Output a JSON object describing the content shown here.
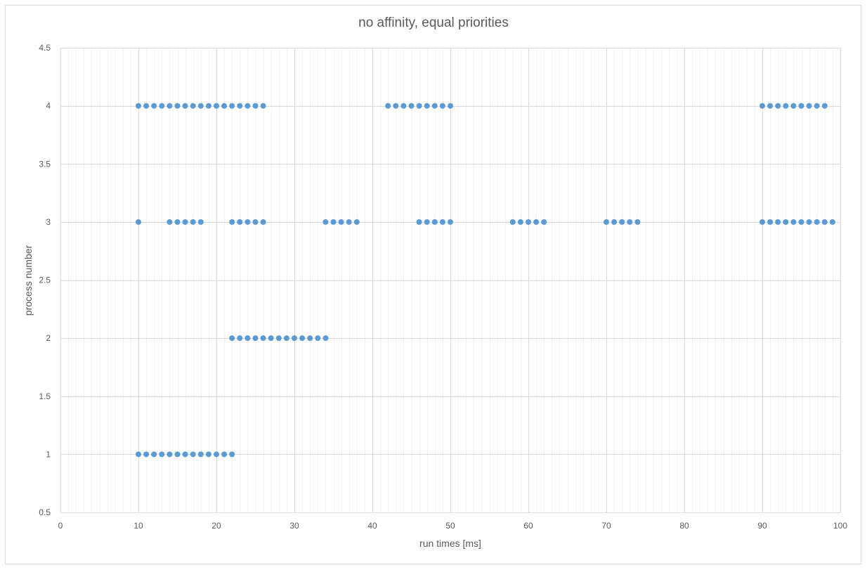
{
  "chart_data": {
    "type": "scatter",
    "title": "no affinity, equal priorities",
    "xlabel": "run times [ms]",
    "ylabel": "process number",
    "xlim": [
      0,
      100
    ],
    "ylim": [
      0.5,
      4.5
    ],
    "x_major_step": 10,
    "x_minor_step": 1,
    "y_step": 0.5,
    "x_tick_labels": [
      "0",
      "10",
      "20",
      "30",
      "40",
      "50",
      "60",
      "70",
      "80",
      "90",
      "100"
    ],
    "y_tick_labels": [
      "0.5",
      "1",
      "1.5",
      "2",
      "2.5",
      "3",
      "3.5",
      "4",
      "4.5"
    ],
    "grid": true,
    "legend": "none",
    "marker_color": "#5b9bd5",
    "grid_color": "#d9d9d9",
    "series": [
      {
        "points": [
          [
            10,
            1
          ],
          [
            11,
            1
          ],
          [
            12,
            1
          ],
          [
            13,
            1
          ],
          [
            14,
            1
          ],
          [
            15,
            1
          ],
          [
            16,
            1
          ],
          [
            17,
            1
          ],
          [
            18,
            1
          ],
          [
            19,
            1
          ],
          [
            20,
            1
          ],
          [
            21,
            1
          ],
          [
            22,
            1
          ],
          [
            22,
            2
          ],
          [
            23,
            2
          ],
          [
            24,
            2
          ],
          [
            25,
            2
          ],
          [
            26,
            2
          ],
          [
            27,
            2
          ],
          [
            28,
            2
          ],
          [
            29,
            2
          ],
          [
            30,
            2
          ],
          [
            31,
            2
          ],
          [
            32,
            2
          ],
          [
            33,
            2
          ],
          [
            34,
            2
          ],
          [
            10,
            3
          ],
          [
            14,
            3
          ],
          [
            15,
            3
          ],
          [
            16,
            3
          ],
          [
            17,
            3
          ],
          [
            18,
            3
          ],
          [
            22,
            3
          ],
          [
            23,
            3
          ],
          [
            24,
            3
          ],
          [
            25,
            3
          ],
          [
            26,
            3
          ],
          [
            34,
            3
          ],
          [
            35,
            3
          ],
          [
            36,
            3
          ],
          [
            37,
            3
          ],
          [
            38,
            3
          ],
          [
            46,
            3
          ],
          [
            47,
            3
          ],
          [
            48,
            3
          ],
          [
            49,
            3
          ],
          [
            50,
            3
          ],
          [
            58,
            3
          ],
          [
            59,
            3
          ],
          [
            60,
            3
          ],
          [
            61,
            3
          ],
          [
            62,
            3
          ],
          [
            70,
            3
          ],
          [
            71,
            3
          ],
          [
            72,
            3
          ],
          [
            73,
            3
          ],
          [
            74,
            3
          ],
          [
            90,
            3
          ],
          [
            91,
            3
          ],
          [
            92,
            3
          ],
          [
            93,
            3
          ],
          [
            94,
            3
          ],
          [
            95,
            3
          ],
          [
            96,
            3
          ],
          [
            97,
            3
          ],
          [
            98,
            3
          ],
          [
            99,
            3
          ],
          [
            10,
            4
          ],
          [
            11,
            4
          ],
          [
            12,
            4
          ],
          [
            13,
            4
          ],
          [
            14,
            4
          ],
          [
            15,
            4
          ],
          [
            16,
            4
          ],
          [
            17,
            4
          ],
          [
            18,
            4
          ],
          [
            19,
            4
          ],
          [
            20,
            4
          ],
          [
            21,
            4
          ],
          [
            22,
            4
          ],
          [
            23,
            4
          ],
          [
            24,
            4
          ],
          [
            25,
            4
          ],
          [
            26,
            4
          ],
          [
            42,
            4
          ],
          [
            43,
            4
          ],
          [
            44,
            4
          ],
          [
            45,
            4
          ],
          [
            46,
            4
          ],
          [
            47,
            4
          ],
          [
            48,
            4
          ],
          [
            49,
            4
          ],
          [
            50,
            4
          ],
          [
            90,
            4
          ],
          [
            91,
            4
          ],
          [
            92,
            4
          ],
          [
            93,
            4
          ],
          [
            94,
            4
          ],
          [
            95,
            4
          ],
          [
            96,
            4
          ],
          [
            97,
            4
          ],
          [
            98,
            4
          ]
        ]
      }
    ]
  }
}
